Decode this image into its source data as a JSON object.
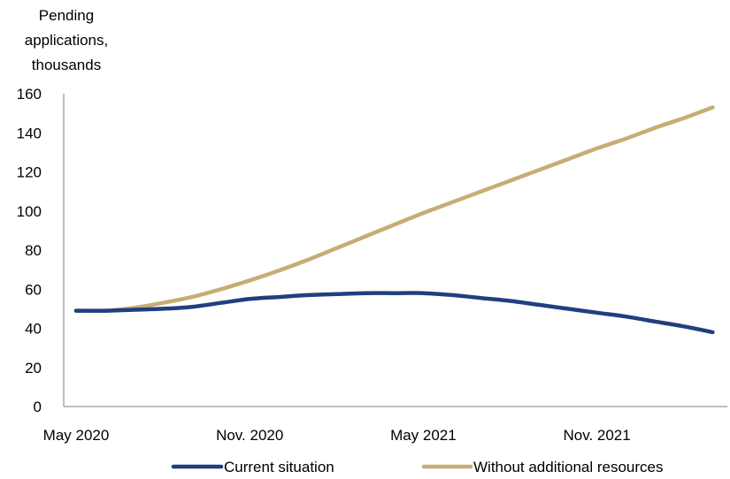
{
  "chart_data": {
    "type": "line",
    "ylabel": "Pending\napplications,\nthousands",
    "xlabel": "",
    "title": "",
    "ylim": [
      0,
      160
    ],
    "yticks": [
      0,
      20,
      40,
      60,
      80,
      100,
      120,
      140,
      160
    ],
    "x_tick_labels": [
      "May 2020",
      "Nov. 2020",
      "May 2021",
      "Nov. 2021"
    ],
    "x": [
      "2020-05",
      "2020-06",
      "2020-07",
      "2020-08",
      "2020-09",
      "2020-10",
      "2020-11",
      "2020-12",
      "2021-01",
      "2021-02",
      "2021-03",
      "2021-04",
      "2021-05",
      "2021-06",
      "2021-07",
      "2021-08",
      "2021-09",
      "2021-10",
      "2021-11",
      "2021-12",
      "2022-01",
      "2022-02",
      "2022-03"
    ],
    "series": [
      {
        "name": "Current situation",
        "color": "#1f3f7f",
        "values": [
          49,
          49,
          49.5,
          50,
          51,
          53,
          55,
          56,
          57,
          57.5,
          58,
          58,
          58,
          57,
          55.5,
          54,
          52,
          50,
          48,
          46,
          43.5,
          41,
          38
        ]
      },
      {
        "name": "Without additional resources",
        "color": "#c6ad74",
        "values": [
          49,
          49,
          50.5,
          53,
          56,
          60,
          64.5,
          69.5,
          75,
          81,
          87,
          93,
          99,
          104.5,
          110,
          115.5,
          121,
          126.5,
          132,
          137,
          142.5,
          147.5,
          153
        ]
      }
    ],
    "legend": {
      "placement": "bottom"
    },
    "grid": false
  }
}
